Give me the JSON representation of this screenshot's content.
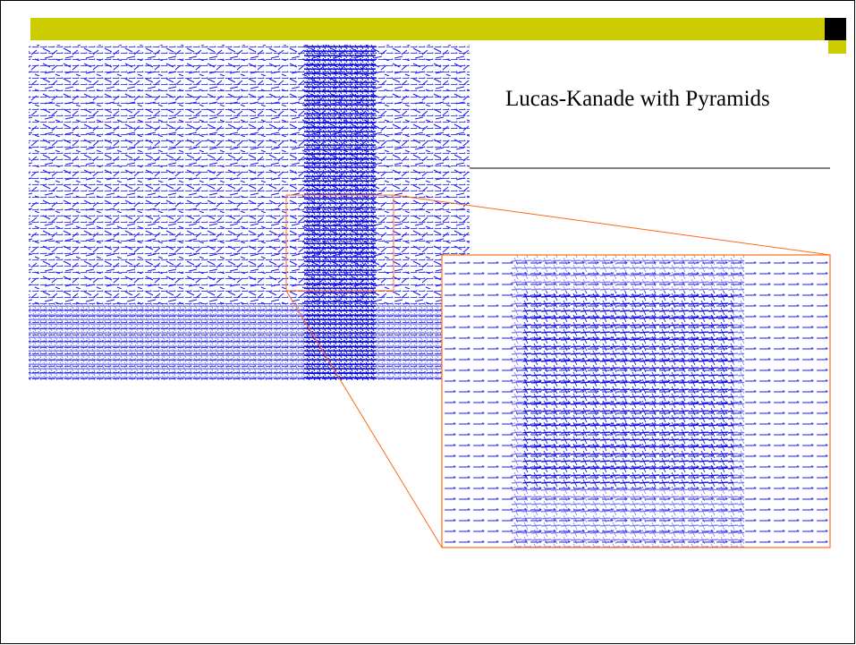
{
  "slide": {
    "title": "Lucas-Kanade with Pyramids"
  }
}
